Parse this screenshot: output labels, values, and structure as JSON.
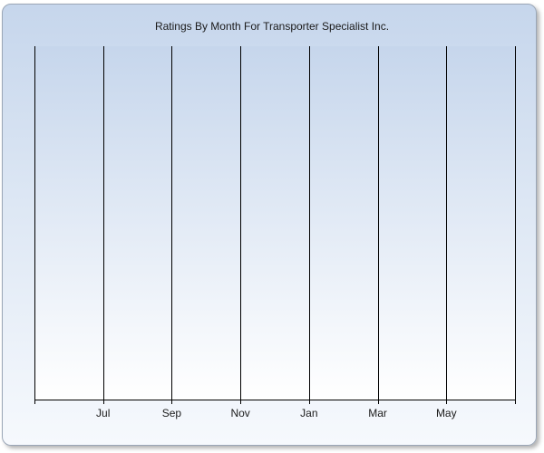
{
  "chart_data": {
    "type": "bar",
    "title": "Ratings By Month For Transporter Specialist Inc.",
    "xlabel": "",
    "ylabel": "",
    "categories": [
      "Jul",
      "Sep",
      "Nov",
      "Jan",
      "Mar",
      "May"
    ],
    "series": [],
    "grid": "vertical",
    "legend": "none",
    "colors": {
      "plot_top": "#c6d6ec",
      "plot_bottom": "#ffffff",
      "grid": "#000000",
      "border": "#9aa6b6"
    }
  }
}
